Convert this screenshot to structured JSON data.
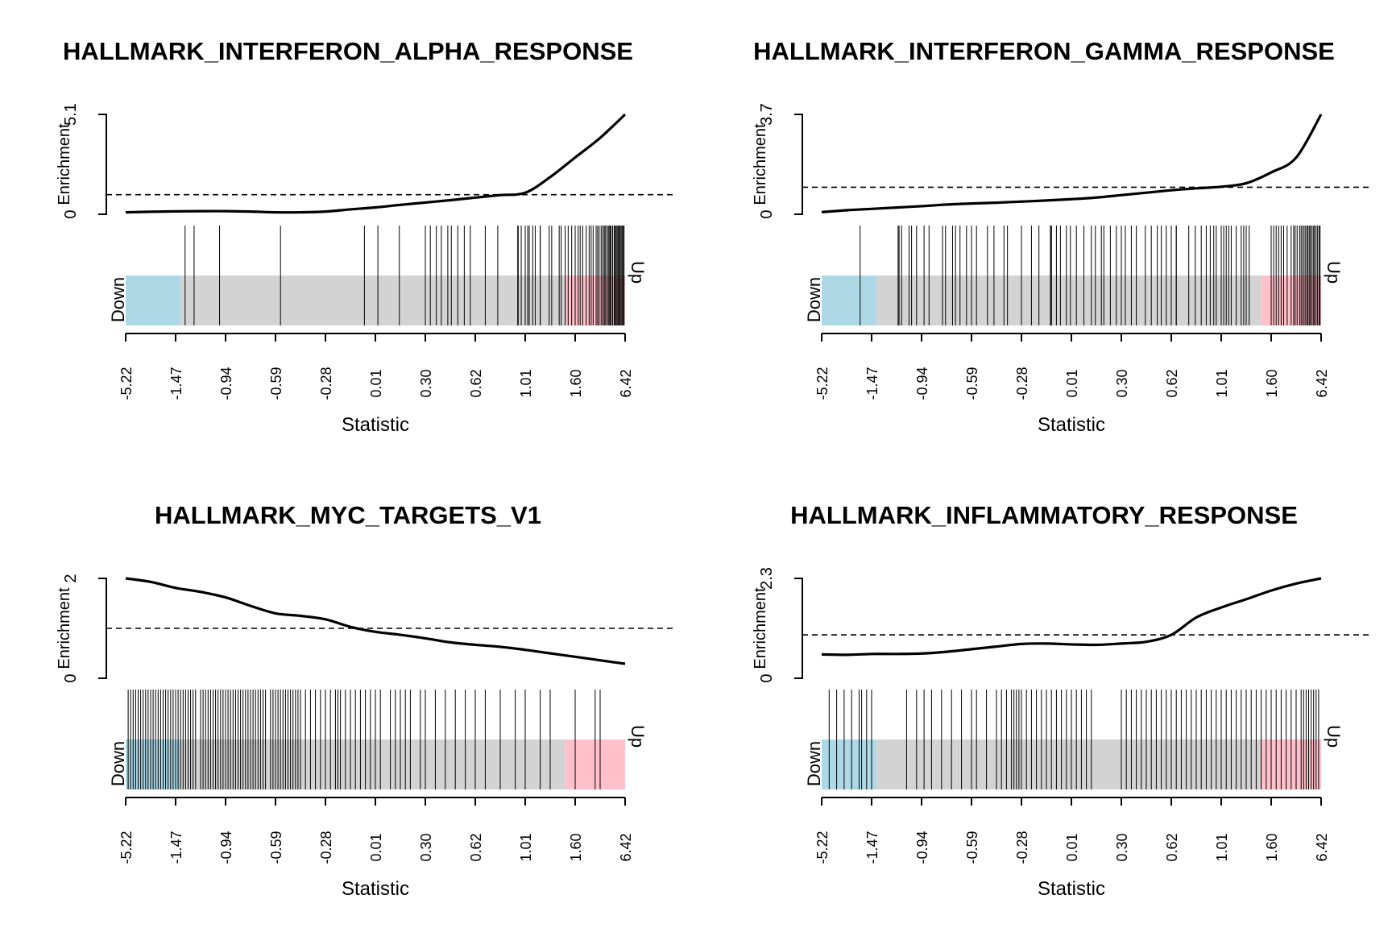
{
  "chart_data": [
    {
      "type": "line",
      "title": "HALLMARK_INTERFERON_ALPHA_RESPONSE",
      "xlabel": "Statistic",
      "ylabel": "Enrichment",
      "y_ticks": [
        "0",
        "5.1"
      ],
      "ylim": [
        0,
        5.1
      ],
      "x_tick_labels": [
        "-5.22",
        "-1.47",
        "-0.94",
        "-0.59",
        "-0.28",
        "0.01",
        "0.30",
        "0.62",
        "1.01",
        "1.60",
        "6.42"
      ],
      "reference_line": 1.0,
      "down_label": "Down",
      "up_label": "Up",
      "colors": {
        "down": "#add8e6",
        "middle": "#d3d3d3",
        "up": "#ffc0cb"
      },
      "enrichment_curve": {
        "x": [
          0,
          0.05,
          0.1,
          0.15,
          0.2,
          0.25,
          0.3,
          0.35,
          0.4,
          0.45,
          0.5,
          0.55,
          0.6,
          0.65,
          0.7,
          0.75,
          0.8,
          0.85,
          0.9,
          0.95,
          1.0
        ],
        "y": [
          0.1,
          0.13,
          0.15,
          0.16,
          0.16,
          0.14,
          0.1,
          0.1,
          0.14,
          0.25,
          0.35,
          0.48,
          0.6,
          0.72,
          0.85,
          0.98,
          1.1,
          1.9,
          2.9,
          3.9,
          5.1
        ]
      },
      "barcode_positions": [
        0.119,
        0.137,
        0.188,
        0.31,
        0.478,
        0.505,
        0.548,
        0.6,
        0.61,
        0.622,
        0.632,
        0.645,
        0.652,
        0.665,
        0.678,
        0.69,
        0.72,
        0.745,
        0.785,
        0.786,
        0.792,
        0.8,
        0.805,
        0.808,
        0.815,
        0.82,
        0.83,
        0.83,
        0.848,
        0.853,
        0.868,
        0.872,
        0.88,
        0.886,
        0.893,
        0.9,
        0.906,
        0.91,
        0.915,
        0.922,
        0.928,
        0.932,
        0.936,
        0.942,
        0.945,
        0.948,
        0.952,
        0.955,
        0.958,
        0.96,
        0.963,
        0.966,
        0.968,
        0.97,
        0.972,
        0.975,
        0.978,
        0.98,
        0.982,
        0.984,
        0.986,
        0.988,
        0.99,
        0.992,
        0.994,
        0.996,
        0.998
      ]
    },
    {
      "type": "line",
      "title": "HALLMARK_INTERFERON_GAMMA_RESPONSE",
      "xlabel": "Statistic",
      "ylabel": "Enrichment",
      "y_ticks": [
        "0",
        "3.7"
      ],
      "ylim": [
        0,
        3.7
      ],
      "x_tick_labels": [
        "-5.22",
        "-1.47",
        "-0.94",
        "-0.59",
        "-0.28",
        "0.01",
        "0.30",
        "0.62",
        "1.01",
        "1.60",
        "6.42"
      ],
      "reference_line": 1.0,
      "down_label": "Down",
      "up_label": "Up",
      "colors": {
        "down": "#add8e6",
        "middle": "#d3d3d3",
        "up": "#ffc0cb"
      },
      "enrichment_curve": {
        "x": [
          0,
          0.05,
          0.1,
          0.15,
          0.2,
          0.25,
          0.3,
          0.35,
          0.4,
          0.45,
          0.5,
          0.55,
          0.6,
          0.65,
          0.7,
          0.75,
          0.8,
          0.85,
          0.9,
          0.95,
          1.0
        ],
        "y": [
          0.08,
          0.15,
          0.2,
          0.25,
          0.3,
          0.36,
          0.4,
          0.43,
          0.47,
          0.51,
          0.56,
          0.62,
          0.71,
          0.8,
          0.89,
          0.96,
          1.02,
          1.15,
          1.55,
          2.1,
          3.7
        ]
      },
      "barcode_positions": [
        0.077,
        0.153,
        0.155,
        0.16,
        0.175,
        0.18,
        0.19,
        0.205,
        0.215,
        0.242,
        0.248,
        0.262,
        0.268,
        0.277,
        0.29,
        0.3,
        0.31,
        0.332,
        0.345,
        0.365,
        0.372,
        0.4,
        0.42,
        0.435,
        0.458,
        0.46,
        0.46,
        0.47,
        0.478,
        0.49,
        0.498,
        0.51,
        0.525,
        0.54,
        0.548,
        0.56,
        0.565,
        0.578,
        0.59,
        0.6,
        0.608,
        0.62,
        0.63,
        0.648,
        0.66,
        0.672,
        0.68,
        0.69,
        0.7,
        0.71,
        0.71,
        0.735,
        0.748,
        0.76,
        0.77,
        0.778,
        0.785,
        0.79,
        0.8,
        0.805,
        0.81,
        0.815,
        0.82,
        0.83,
        0.84,
        0.845,
        0.85,
        0.856,
        0.9,
        0.905,
        0.91,
        0.915,
        0.92,
        0.925,
        0.932,
        0.94,
        0.945,
        0.948,
        0.952,
        0.957,
        0.96,
        0.963,
        0.966,
        0.969,
        0.972,
        0.974,
        0.977,
        0.979,
        0.982,
        0.985,
        0.987,
        0.99,
        0.993,
        0.996,
        0.998
      ]
    },
    {
      "type": "line",
      "title": "HALLMARK_MYC_TARGETS_V1",
      "xlabel": "Statistic",
      "ylabel": "Enrichment",
      "y_ticks": [
        "0",
        "2"
      ],
      "ylim": [
        0,
        2
      ],
      "x_tick_labels": [
        "-5.22",
        "-1.47",
        "-0.94",
        "-0.59",
        "-0.28",
        "0.01",
        "0.30",
        "0.62",
        "1.01",
        "1.60",
        "6.42"
      ],
      "reference_line": 1.0,
      "down_label": "Down",
      "up_label": "Up",
      "colors": {
        "down": "#add8e6",
        "middle": "#d3d3d3",
        "up": "#ffc0cb"
      },
      "enrichment_curve": {
        "x": [
          0,
          0.05,
          0.1,
          0.15,
          0.2,
          0.25,
          0.3,
          0.35,
          0.4,
          0.45,
          0.5,
          0.55,
          0.6,
          0.65,
          0.7,
          0.75,
          0.8,
          0.85,
          0.9,
          0.95,
          1.0
        ],
        "y": [
          2.0,
          1.93,
          1.81,
          1.73,
          1.62,
          1.45,
          1.3,
          1.25,
          1.18,
          1.03,
          0.93,
          0.87,
          0.8,
          0.72,
          0.67,
          0.63,
          0.57,
          0.5,
          0.43,
          0.36,
          0.29
        ]
      },
      "barcode_positions": [
        0.005,
        0.01,
        0.015,
        0.02,
        0.025,
        0.03,
        0.035,
        0.04,
        0.045,
        0.05,
        0.055,
        0.06,
        0.065,
        0.07,
        0.075,
        0.08,
        0.085,
        0.09,
        0.095,
        0.1,
        0.105,
        0.11,
        0.115,
        0.12,
        0.125,
        0.13,
        0.135,
        0.14,
        0.15,
        0.155,
        0.16,
        0.165,
        0.17,
        0.175,
        0.18,
        0.185,
        0.19,
        0.195,
        0.2,
        0.205,
        0.21,
        0.215,
        0.22,
        0.225,
        0.23,
        0.235,
        0.24,
        0.245,
        0.25,
        0.255,
        0.26,
        0.265,
        0.27,
        0.275,
        0.28,
        0.29,
        0.295,
        0.3,
        0.305,
        0.31,
        0.315,
        0.32,
        0.325,
        0.33,
        0.335,
        0.34,
        0.345,
        0.35,
        0.36,
        0.37,
        0.38,
        0.39,
        0.4,
        0.41,
        0.42,
        0.425,
        0.43,
        0.44,
        0.45,
        0.46,
        0.47,
        0.48,
        0.49,
        0.5,
        0.51,
        0.53,
        0.54,
        0.55,
        0.56,
        0.57,
        0.59,
        0.6,
        0.62,
        0.64,
        0.66,
        0.68,
        0.7,
        0.72,
        0.75,
        0.78,
        0.8,
        0.83,
        0.85,
        0.9,
        0.94,
        0.95
      ]
    },
    {
      "type": "line",
      "title": "HALLMARK_INFLAMMATORY_RESPONSE",
      "xlabel": "Statistic",
      "ylabel": "Enrichment",
      "y_ticks": [
        "0",
        "2.3"
      ],
      "ylim": [
        0,
        2.3
      ],
      "x_tick_labels": [
        "-5.22",
        "-1.47",
        "-0.94",
        "-0.59",
        "-0.28",
        "0.01",
        "0.30",
        "0.62",
        "1.01",
        "1.60",
        "6.42"
      ],
      "reference_line": 1.0,
      "down_label": "Down",
      "up_label": "Up",
      "colors": {
        "down": "#add8e6",
        "middle": "#d3d3d3",
        "up": "#ffc0cb"
      },
      "enrichment_curve": {
        "x": [
          0,
          0.05,
          0.1,
          0.15,
          0.2,
          0.25,
          0.3,
          0.35,
          0.4,
          0.45,
          0.5,
          0.55,
          0.6,
          0.65,
          0.7,
          0.75,
          0.8,
          0.85,
          0.9,
          0.95,
          1.0
        ],
        "y": [
          0.55,
          0.54,
          0.56,
          0.56,
          0.57,
          0.61,
          0.67,
          0.73,
          0.79,
          0.8,
          0.78,
          0.77,
          0.8,
          0.84,
          1.0,
          1.4,
          1.63,
          1.82,
          2.02,
          2.18,
          2.3
        ]
      },
      "barcode_positions": [
        0.015,
        0.03,
        0.045,
        0.06,
        0.075,
        0.08,
        0.09,
        0.1,
        0.17,
        0.19,
        0.205,
        0.22,
        0.24,
        0.26,
        0.28,
        0.3,
        0.31,
        0.33,
        0.35,
        0.36,
        0.37,
        0.38,
        0.385,
        0.39,
        0.395,
        0.4,
        0.41,
        0.42,
        0.43,
        0.44,
        0.45,
        0.46,
        0.47,
        0.48,
        0.49,
        0.5,
        0.51,
        0.52,
        0.53,
        0.54,
        0.6,
        0.61,
        0.62,
        0.63,
        0.64,
        0.65,
        0.66,
        0.67,
        0.68,
        0.69,
        0.7,
        0.71,
        0.72,
        0.73,
        0.74,
        0.75,
        0.76,
        0.77,
        0.78,
        0.79,
        0.8,
        0.81,
        0.82,
        0.83,
        0.84,
        0.85,
        0.86,
        0.87,
        0.88,
        0.89,
        0.9,
        0.91,
        0.92,
        0.93,
        0.94,
        0.95,
        0.96,
        0.965,
        0.97,
        0.975,
        0.98,
        0.985,
        0.99,
        0.995
      ]
    }
  ]
}
